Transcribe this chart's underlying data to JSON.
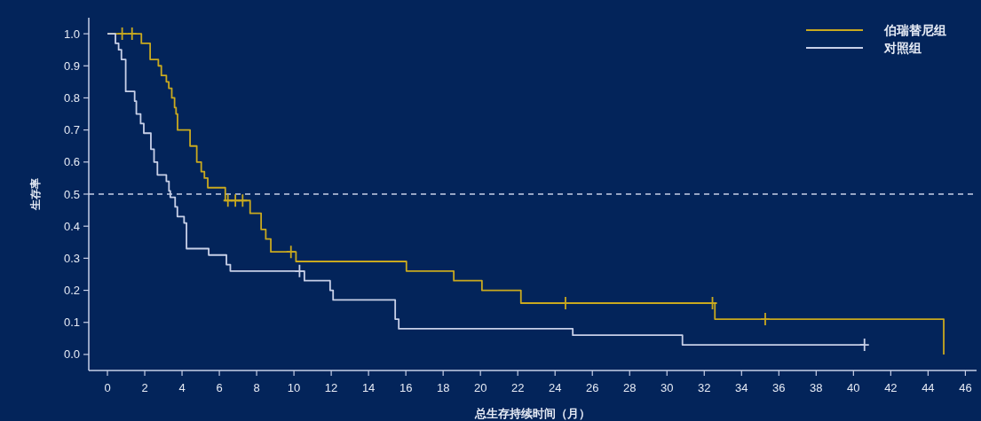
{
  "chart_data": {
    "type": "step",
    "xlabel": "总生存持续时间（月）",
    "ylabel": "生存率",
    "xlim": [
      -1,
      46.6
    ],
    "ylim": [
      -0.05,
      1.05
    ],
    "xticks": [
      0,
      2,
      4,
      6,
      8,
      10,
      12,
      14,
      16,
      18,
      20,
      22,
      24,
      26,
      28,
      30,
      32,
      34,
      36,
      38,
      40,
      42,
      44,
      46
    ],
    "yticks": [
      {
        "value": 0,
        "label": "0.0"
      },
      {
        "value": 0.1,
        "label": "0.1"
      },
      {
        "value": 0.2,
        "label": "0.2"
      },
      {
        "value": 0.3,
        "label": "0.3"
      },
      {
        "value": 0.4,
        "label": "0.4"
      },
      {
        "value": 0.5,
        "label": "0.5"
      },
      {
        "value": 0.6,
        "label": "0.6"
      },
      {
        "value": 0.7,
        "label": "0.7"
      },
      {
        "value": 0.8,
        "label": "0.8"
      },
      {
        "value": 0.9,
        "label": "0.9"
      },
      {
        "value": 1,
        "label": "1.0"
      }
    ],
    "legend": "top right",
    "ref_lines": [
      {
        "axis": "y",
        "value": 0.5,
        "color": "#c8d0e8",
        "line_style": "dashed"
      }
    ],
    "series": [
      {
        "name": "伯瑞替尼组",
        "type": "step",
        "color": "#c9a91f",
        "x": [
          0,
          1.82,
          2.29,
          2.73,
          2.89,
          3.16,
          3.29,
          3.45,
          3.6,
          3.68,
          3.76,
          4.43,
          4.79,
          5.03,
          5.2,
          5.38,
          6.32,
          7.65,
          8.24,
          8.49,
          8.76,
          10.11,
          16.03,
          18.57,
          20.08,
          22.17,
          32.57,
          44.84
        ],
        "values": [
          1.0,
          0.97,
          0.92,
          0.9,
          0.87,
          0.85,
          0.83,
          0.8,
          0.77,
          0.75,
          0.7,
          0.65,
          0.6,
          0.57,
          0.55,
          0.52,
          0.48,
          0.44,
          0.39,
          0.36,
          0.32,
          0.29,
          0.26,
          0.23,
          0.2,
          0.16,
          0.11,
          0.0
        ]
      },
      {
        "name": "对照组",
        "type": "step",
        "color": "#c8d0e8",
        "x": [
          0,
          0.43,
          0.6,
          0.75,
          0.98,
          1.46,
          1.55,
          1.78,
          1.95,
          2.33,
          2.5,
          2.68,
          3.16,
          3.3,
          3.37,
          3.63,
          3.75,
          4.11,
          4.24,
          5.43,
          6.38,
          6.59,
          10.56,
          11.94,
          12.1,
          15.43,
          15.62,
          24.95,
          30.83,
          40.59
        ],
        "values": [
          1.0,
          0.97,
          0.95,
          0.92,
          0.82,
          0.79,
          0.75,
          0.72,
          0.69,
          0.64,
          0.6,
          0.56,
          0.54,
          0.51,
          0.49,
          0.46,
          0.43,
          0.41,
          0.33,
          0.31,
          0.28,
          0.26,
          0.23,
          0.2,
          0.17,
          0.11,
          0.08,
          0.06,
          0.03,
          0.03
        ]
      },
      {
        "type": "scatter",
        "marker": "cross",
        "color": "#c9a91f",
        "x": [
          0.79,
          1.32,
          6.46,
          6.86,
          7.25,
          9.84,
          24.56,
          32.44,
          35.27
        ],
        "values": [
          1.0,
          1.0,
          0.48,
          0.48,
          0.48,
          0.32,
          0.16,
          0.16,
          0.11
        ]
      },
      {
        "type": "scatter",
        "marker": "cross",
        "color": "#c8d0e8",
        "x": [
          10.3,
          40.59
        ],
        "values": [
          0.26,
          0.03
        ]
      }
    ]
  }
}
